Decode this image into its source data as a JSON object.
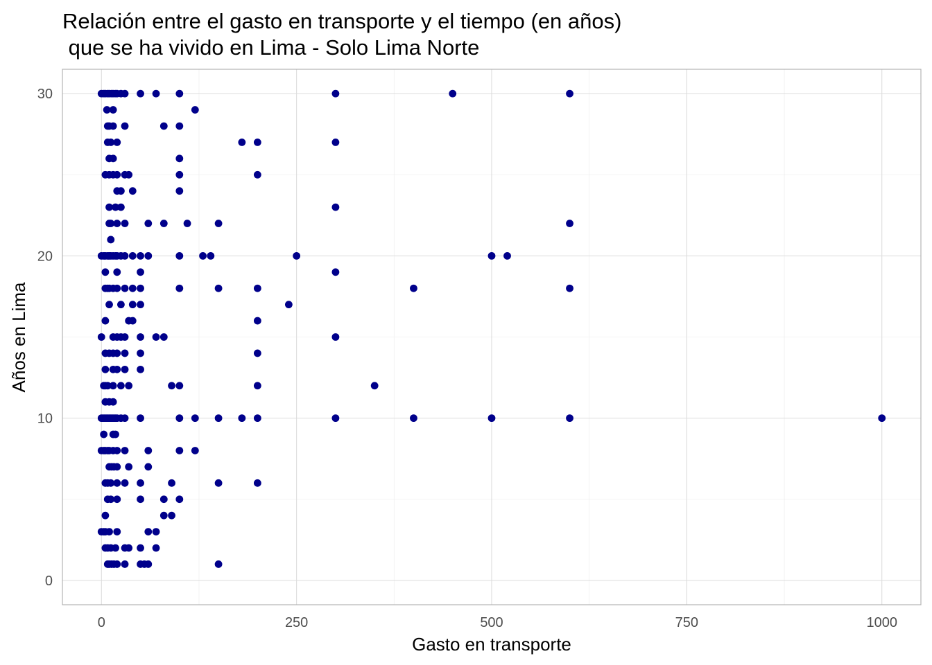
{
  "chart_data": {
    "type": "scatter",
    "title_line1": "Relación entre el gasto en transporte y el tiempo (en años)",
    "title_line2": " que se ha vivido en Lima - Solo Lima Norte",
    "xlabel": "Gasto en transporte",
    "ylabel": "Años en Lima",
    "xlim": [
      -50,
      1050
    ],
    "ylim": [
      -1.5,
      31.5
    ],
    "xticks": [
      0,
      250,
      500,
      750,
      1000
    ],
    "xtick_labels": [
      "0",
      "250",
      "500",
      "750",
      "1000"
    ],
    "yticks": [
      0,
      10,
      20,
      30
    ],
    "ytick_labels": [
      "0",
      "10",
      "20",
      "30"
    ],
    "grid": true,
    "legend": "none",
    "point_color": "#00008B",
    "series": [
      {
        "points": [
          [
            0,
            30
          ],
          [
            3,
            30
          ],
          [
            5,
            30
          ],
          [
            8,
            30
          ],
          [
            10,
            30
          ],
          [
            13,
            30
          ],
          [
            15,
            30
          ],
          [
            18,
            30
          ],
          [
            20,
            30
          ],
          [
            25,
            30
          ],
          [
            30,
            30
          ],
          [
            50,
            30
          ],
          [
            70,
            30
          ],
          [
            100,
            30
          ],
          [
            300,
            30
          ],
          [
            450,
            30
          ],
          [
            600,
            30
          ],
          [
            7,
            29
          ],
          [
            15,
            29
          ],
          [
            120,
            29
          ],
          [
            8,
            28
          ],
          [
            10,
            28
          ],
          [
            15,
            28
          ],
          [
            30,
            28
          ],
          [
            80,
            28
          ],
          [
            100,
            28
          ],
          [
            8,
            27
          ],
          [
            12,
            27
          ],
          [
            20,
            27
          ],
          [
            180,
            27
          ],
          [
            200,
            27
          ],
          [
            300,
            27
          ],
          [
            10,
            26
          ],
          [
            15,
            26
          ],
          [
            100,
            26
          ],
          [
            5,
            25
          ],
          [
            10,
            25
          ],
          [
            15,
            25
          ],
          [
            20,
            25
          ],
          [
            30,
            25
          ],
          [
            35,
            25
          ],
          [
            100,
            25
          ],
          [
            200,
            25
          ],
          [
            20,
            24
          ],
          [
            25,
            24
          ],
          [
            40,
            24
          ],
          [
            100,
            24
          ],
          [
            10,
            23
          ],
          [
            18,
            23
          ],
          [
            25,
            23
          ],
          [
            300,
            23
          ],
          [
            10,
            22
          ],
          [
            12,
            22
          ],
          [
            20,
            22
          ],
          [
            30,
            22
          ],
          [
            60,
            22
          ],
          [
            80,
            22
          ],
          [
            110,
            22
          ],
          [
            150,
            22
          ],
          [
            600,
            22
          ],
          [
            12,
            21
          ],
          [
            0,
            20
          ],
          [
            3,
            20
          ],
          [
            5,
            20
          ],
          [
            8,
            20
          ],
          [
            10,
            20
          ],
          [
            12,
            20
          ],
          [
            15,
            20
          ],
          [
            18,
            20
          ],
          [
            20,
            20
          ],
          [
            25,
            20
          ],
          [
            30,
            20
          ],
          [
            40,
            20
          ],
          [
            50,
            20
          ],
          [
            60,
            20
          ],
          [
            100,
            20
          ],
          [
            130,
            20
          ],
          [
            140,
            20
          ],
          [
            250,
            20
          ],
          [
            500,
            20
          ],
          [
            520,
            20
          ],
          [
            5,
            19
          ],
          [
            20,
            19
          ],
          [
            50,
            19
          ],
          [
            300,
            19
          ],
          [
            5,
            18
          ],
          [
            8,
            18
          ],
          [
            10,
            18
          ],
          [
            15,
            18
          ],
          [
            20,
            18
          ],
          [
            30,
            18
          ],
          [
            40,
            18
          ],
          [
            50,
            18
          ],
          [
            100,
            18
          ],
          [
            150,
            18
          ],
          [
            200,
            18
          ],
          [
            400,
            18
          ],
          [
            600,
            18
          ],
          [
            10,
            17
          ],
          [
            25,
            17
          ],
          [
            40,
            17
          ],
          [
            50,
            17
          ],
          [
            240,
            17
          ],
          [
            5,
            16
          ],
          [
            35,
            16
          ],
          [
            40,
            16
          ],
          [
            200,
            16
          ],
          [
            0,
            15
          ],
          [
            15,
            15
          ],
          [
            20,
            15
          ],
          [
            25,
            15
          ],
          [
            30,
            15
          ],
          [
            50,
            15
          ],
          [
            70,
            15
          ],
          [
            80,
            15
          ],
          [
            300,
            15
          ],
          [
            5,
            14
          ],
          [
            10,
            14
          ],
          [
            15,
            14
          ],
          [
            20,
            14
          ],
          [
            30,
            14
          ],
          [
            50,
            14
          ],
          [
            200,
            14
          ],
          [
            5,
            13
          ],
          [
            15,
            13
          ],
          [
            20,
            13
          ],
          [
            30,
            13
          ],
          [
            50,
            13
          ],
          [
            3,
            12
          ],
          [
            5,
            12
          ],
          [
            8,
            12
          ],
          [
            15,
            12
          ],
          [
            25,
            12
          ],
          [
            35,
            12
          ],
          [
            90,
            12
          ],
          [
            100,
            12
          ],
          [
            200,
            12
          ],
          [
            350,
            12
          ],
          [
            5,
            11
          ],
          [
            10,
            11
          ],
          [
            15,
            11
          ],
          [
            0,
            10
          ],
          [
            2,
            10
          ],
          [
            4,
            10
          ],
          [
            6,
            10
          ],
          [
            8,
            10
          ],
          [
            10,
            10
          ],
          [
            12,
            10
          ],
          [
            14,
            10
          ],
          [
            16,
            10
          ],
          [
            18,
            10
          ],
          [
            20,
            10
          ],
          [
            25,
            10
          ],
          [
            30,
            10
          ],
          [
            50,
            10
          ],
          [
            100,
            10
          ],
          [
            120,
            10
          ],
          [
            150,
            10
          ],
          [
            180,
            10
          ],
          [
            200,
            10
          ],
          [
            300,
            10
          ],
          [
            400,
            10
          ],
          [
            500,
            10
          ],
          [
            600,
            10
          ],
          [
            1000,
            10
          ],
          [
            3,
            9
          ],
          [
            15,
            9
          ],
          [
            18,
            9
          ],
          [
            0,
            8
          ],
          [
            3,
            8
          ],
          [
            5,
            8
          ],
          [
            8,
            8
          ],
          [
            10,
            8
          ],
          [
            15,
            8
          ],
          [
            20,
            8
          ],
          [
            30,
            8
          ],
          [
            60,
            8
          ],
          [
            100,
            8
          ],
          [
            120,
            8
          ],
          [
            10,
            7
          ],
          [
            13,
            7
          ],
          [
            16,
            7
          ],
          [
            20,
            7
          ],
          [
            35,
            7
          ],
          [
            60,
            7
          ],
          [
            5,
            6
          ],
          [
            8,
            6
          ],
          [
            12,
            6
          ],
          [
            20,
            6
          ],
          [
            30,
            6
          ],
          [
            50,
            6
          ],
          [
            90,
            6
          ],
          [
            150,
            6
          ],
          [
            200,
            6
          ],
          [
            8,
            5
          ],
          [
            12,
            5
          ],
          [
            20,
            5
          ],
          [
            50,
            5
          ],
          [
            80,
            5
          ],
          [
            100,
            5
          ],
          [
            5,
            4
          ],
          [
            80,
            4
          ],
          [
            90,
            4
          ],
          [
            0,
            3
          ],
          [
            3,
            3
          ],
          [
            5,
            3
          ],
          [
            10,
            3
          ],
          [
            20,
            3
          ],
          [
            60,
            3
          ],
          [
            70,
            3
          ],
          [
            5,
            2
          ],
          [
            8,
            2
          ],
          [
            12,
            2
          ],
          [
            18,
            2
          ],
          [
            30,
            2
          ],
          [
            35,
            2
          ],
          [
            50,
            2
          ],
          [
            70,
            2
          ],
          [
            8,
            1
          ],
          [
            10,
            1
          ],
          [
            13,
            1
          ],
          [
            16,
            1
          ],
          [
            20,
            1
          ],
          [
            30,
            1
          ],
          [
            50,
            1
          ],
          [
            55,
            1
          ],
          [
            60,
            1
          ],
          [
            150,
            1
          ]
        ]
      }
    ]
  }
}
